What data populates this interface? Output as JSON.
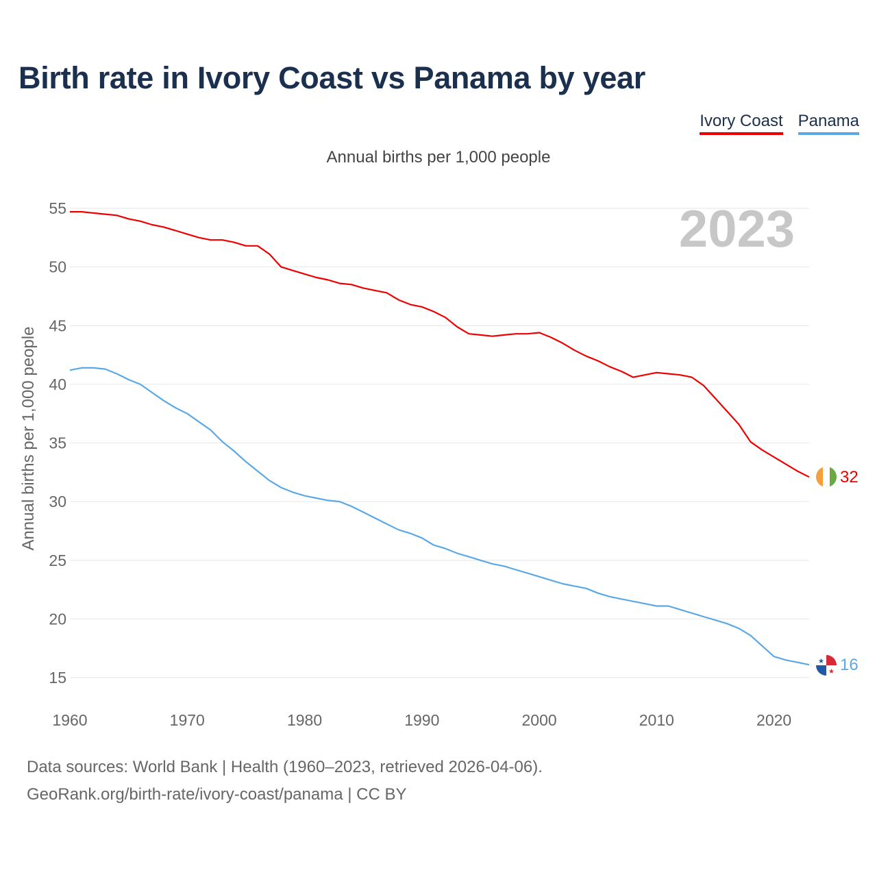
{
  "title": "Birth rate in Ivory Coast vs Panama by year",
  "legend": {
    "ivory_coast": "Ivory Coast",
    "panama": "Panama"
  },
  "subtitle": "Annual births per 1,000 people",
  "source": {
    "line1": "Data sources: World Bank | Health (1960–2023, retrieved 2026-04-06).",
    "line2": "GeoRank.org/birth-rate/ivory-coast/panama | CC BY"
  },
  "chart_data": {
    "type": "line",
    "title": "Birth rate in Ivory Coast vs Panama by year",
    "subtitle": "Annual births per 1,000 people",
    "xlabel": "",
    "ylabel": "Annual births per 1,000 people",
    "xlim": [
      1960,
      2023
    ],
    "ylim": [
      15,
      55
    ],
    "x_ticks": [
      1960,
      1970,
      1980,
      1990,
      2000,
      2010,
      2020
    ],
    "y_ticks": [
      15,
      20,
      25,
      30,
      35,
      40,
      45,
      50,
      55
    ],
    "grid": true,
    "legend_position": "top-right",
    "year_watermark": "2023",
    "x": [
      1960,
      1961,
      1962,
      1963,
      1964,
      1965,
      1966,
      1967,
      1968,
      1969,
      1970,
      1971,
      1972,
      1973,
      1974,
      1975,
      1976,
      1977,
      1978,
      1979,
      1980,
      1981,
      1982,
      1983,
      1984,
      1985,
      1986,
      1987,
      1988,
      1989,
      1990,
      1991,
      1992,
      1993,
      1994,
      1995,
      1996,
      1997,
      1998,
      1999,
      2000,
      2001,
      2002,
      2003,
      2004,
      2005,
      2006,
      2007,
      2008,
      2009,
      2010,
      2011,
      2012,
      2013,
      2014,
      2015,
      2016,
      2017,
      2018,
      2019,
      2020,
      2021,
      2022,
      2023
    ],
    "series": [
      {
        "name": "Ivory Coast",
        "color": "#ee0000",
        "end_label": "32",
        "values": [
          54.7,
          54.7,
          54.6,
          54.5,
          54.4,
          54.1,
          53.9,
          53.6,
          53.4,
          53.1,
          52.8,
          52.5,
          52.3,
          52.3,
          52.1,
          51.8,
          51.8,
          51.1,
          50.0,
          49.7,
          49.4,
          49.1,
          48.9,
          48.6,
          48.5,
          48.2,
          48.0,
          47.8,
          47.2,
          46.8,
          46.6,
          46.2,
          45.7,
          44.9,
          44.3,
          44.2,
          44.1,
          44.2,
          44.3,
          44.3,
          44.4,
          44.0,
          43.5,
          42.9,
          42.4,
          42.0,
          41.5,
          41.1,
          40.6,
          40.8,
          41.0,
          40.9,
          40.8,
          40.6,
          39.9,
          38.8,
          37.7,
          36.6,
          35.1,
          34.4,
          33.8,
          33.2,
          32.6,
          32.1
        ]
      },
      {
        "name": "Panama",
        "color": "#5aa8e6",
        "end_label": "16",
        "values": [
          41.2,
          41.4,
          41.4,
          41.3,
          40.9,
          40.4,
          40.0,
          39.3,
          38.6,
          38.0,
          37.5,
          36.8,
          36.1,
          35.1,
          34.3,
          33.4,
          32.6,
          31.8,
          31.2,
          30.8,
          30.5,
          30.3,
          30.1,
          30.0,
          29.6,
          29.1,
          28.6,
          28.1,
          27.6,
          27.3,
          26.9,
          26.3,
          26.0,
          25.6,
          25.3,
          25.0,
          24.7,
          24.5,
          24.2,
          23.9,
          23.6,
          23.3,
          23.0,
          22.8,
          22.6,
          22.2,
          21.9,
          21.7,
          21.5,
          21.3,
          21.1,
          21.1,
          20.8,
          20.5,
          20.2,
          19.9,
          19.6,
          19.2,
          18.6,
          17.7,
          16.8,
          16.5,
          16.3,
          16.1
        ]
      }
    ]
  }
}
